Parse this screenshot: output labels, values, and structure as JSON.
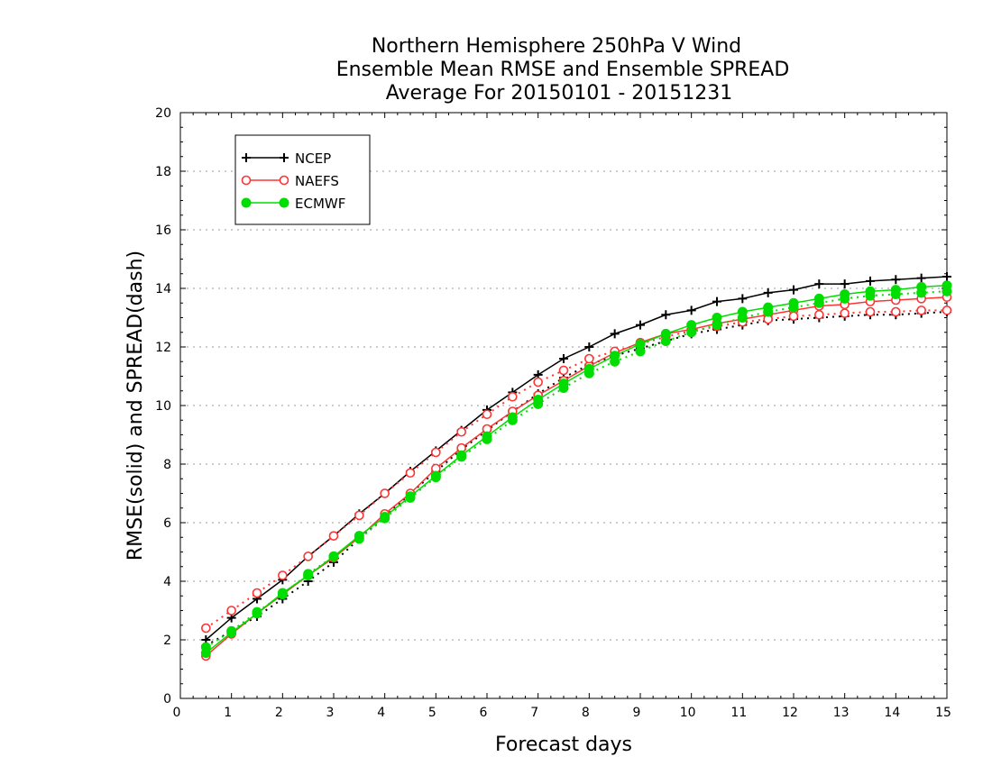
{
  "chart_data": {
    "type": "line",
    "title": [
      "Northern Hemisphere 250hPa V Wind",
      "Ensemble Mean RMSE and Ensemble SPREAD",
      "Average For 20150101 - 20151231"
    ],
    "xlabel": "Forecast days",
    "ylabel": "RMSE(solid) and SPREAD(dash)",
    "xlim": [
      0,
      15
    ],
    "ylim": [
      0,
      20
    ],
    "xticks": [
      0,
      1,
      2,
      3,
      4,
      5,
      6,
      7,
      8,
      9,
      10,
      11,
      12,
      13,
      14,
      15
    ],
    "yticks": [
      0,
      2,
      4,
      6,
      8,
      10,
      12,
      14,
      16,
      18,
      20
    ],
    "grid": "horizontal dotted",
    "legend_position": "top-left",
    "x": [
      0.5,
      1,
      1.5,
      2,
      2.5,
      3,
      3.5,
      4,
      4.5,
      5,
      5.5,
      6,
      6.5,
      7,
      7.5,
      8,
      8.5,
      9,
      9.5,
      10,
      10.5,
      11,
      11.5,
      12,
      12.5,
      13,
      13.5,
      14,
      14.5,
      15
    ],
    "series": [
      {
        "name": "NCEP",
        "color": "#000000",
        "marker": "plus",
        "rmse": [
          2.0,
          2.75,
          3.4,
          4.05,
          4.85,
          5.55,
          6.3,
          7.0,
          7.75,
          8.45,
          9.15,
          9.85,
          10.45,
          11.05,
          11.6,
          12.0,
          12.45,
          12.75,
          13.1,
          13.25,
          13.55,
          13.65,
          13.85,
          13.95,
          14.15,
          14.15,
          14.25,
          14.3,
          14.35,
          14.4
        ],
        "spread": [
          1.8,
          2.3,
          2.8,
          3.4,
          4.0,
          4.65,
          5.45,
          6.2,
          7.0,
          7.75,
          8.5,
          9.15,
          9.8,
          10.4,
          10.95,
          11.4,
          11.7,
          11.95,
          12.2,
          12.45,
          12.6,
          12.75,
          12.9,
          12.95,
          13.0,
          13.05,
          13.1,
          13.1,
          13.15,
          13.2
        ]
      },
      {
        "name": "NAEFS",
        "color": "#ff3333",
        "marker": "open-circle",
        "rmse": [
          1.45,
          2.2,
          2.9,
          3.55,
          4.2,
          4.8,
          5.5,
          6.3,
          7.0,
          7.85,
          8.55,
          9.2,
          9.8,
          10.35,
          10.85,
          11.35,
          11.8,
          12.15,
          12.45,
          12.6,
          12.8,
          12.95,
          13.1,
          13.25,
          13.4,
          13.45,
          13.55,
          13.6,
          13.65,
          13.7
        ],
        "spread": [
          2.4,
          3.0,
          3.6,
          4.2,
          4.85,
          5.55,
          6.25,
          7.0,
          7.7,
          8.4,
          9.1,
          9.7,
          10.3,
          10.8,
          11.2,
          11.6,
          11.85,
          12.1,
          12.35,
          12.55,
          12.7,
          12.85,
          12.95,
          13.05,
          13.1,
          13.15,
          13.2,
          13.2,
          13.25,
          13.25
        ]
      },
      {
        "name": "ECMWF",
        "color": "#00dd00",
        "marker": "filled-circle",
        "rmse": [
          1.55,
          2.25,
          2.9,
          3.6,
          4.2,
          4.85,
          5.55,
          6.2,
          6.9,
          7.6,
          8.3,
          8.95,
          9.6,
          10.2,
          10.75,
          11.25,
          11.7,
          12.1,
          12.45,
          12.75,
          13.0,
          13.2,
          13.35,
          13.5,
          13.65,
          13.8,
          13.9,
          13.95,
          14.05,
          14.1
        ],
        "spread": [
          1.75,
          2.3,
          2.95,
          3.55,
          4.25,
          4.85,
          5.45,
          6.15,
          6.85,
          7.55,
          8.25,
          8.85,
          9.5,
          10.05,
          10.6,
          11.1,
          11.5,
          11.85,
          12.2,
          12.5,
          12.75,
          13.0,
          13.2,
          13.35,
          13.5,
          13.65,
          13.75,
          13.8,
          13.85,
          13.9
        ]
      }
    ]
  }
}
